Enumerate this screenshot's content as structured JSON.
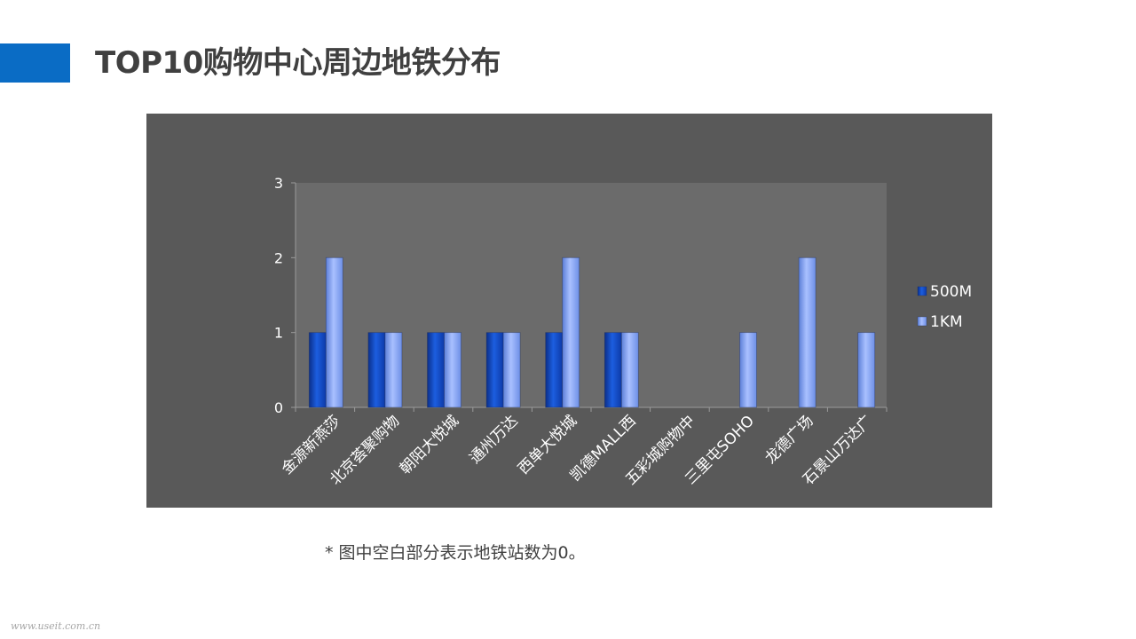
{
  "slide": {
    "title": "TOP10购物中心周边地铁分布",
    "footnote": "* 图中空白部分表示地铁站数为0。",
    "watermark": "www.useit.com.cn"
  },
  "colors": {
    "accent": "#0a6cc5",
    "panel_bg": "#595959",
    "plot_bg": "#6b6b6b",
    "series_500m": "#1450c8",
    "series_1km": "#7f9ef0"
  },
  "chart_data": {
    "type": "bar",
    "categories": [
      "金源新燕莎",
      "北京荟聚购物",
      "朝阳大悦城",
      "通州万达",
      "西单大悦城",
      "凯德MALL西",
      "五彩城购物中",
      "三里屯SOHO",
      "龙德广场",
      "石景山万达广"
    ],
    "series": [
      {
        "name": "500M",
        "values": [
          1,
          1,
          1,
          1,
          1,
          1,
          0,
          0,
          0,
          0
        ],
        "color": "#1450c8"
      },
      {
        "name": "1KM",
        "values": [
          2,
          1,
          1,
          1,
          2,
          1,
          0,
          1,
          2,
          1
        ],
        "color": "#7f9ef0"
      }
    ],
    "ylim": [
      0,
      3
    ],
    "yticks": [
      "0",
      "1",
      "2",
      "3"
    ],
    "legend": "right",
    "grid": false,
    "title": "",
    "xlabel": "",
    "ylabel": ""
  }
}
